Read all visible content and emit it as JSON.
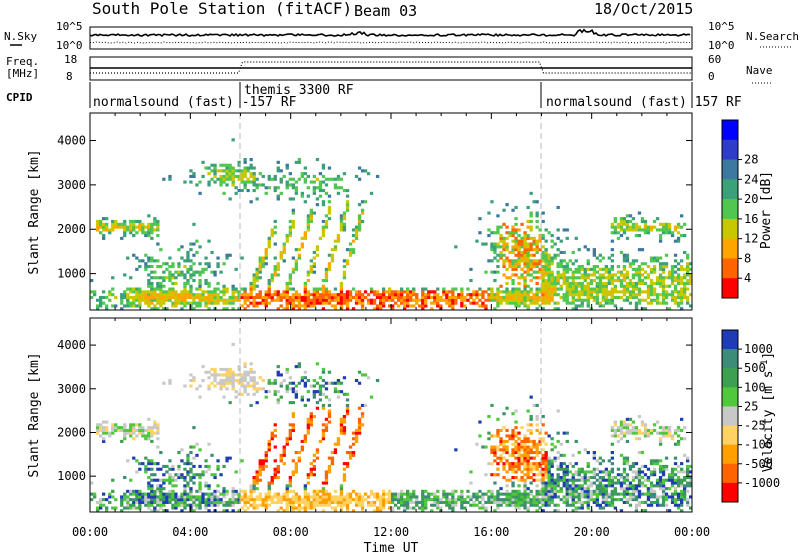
{
  "header": {
    "station": "South Pole Station (fitACF)",
    "beam": "Beam 03",
    "date": "18/Oct/2015"
  },
  "panels": {
    "sky": {
      "left_label": "N.Sky",
      "right_label": "N.Search",
      "tick_top": "10^5",
      "tick_bottom": "10^0"
    },
    "freq": {
      "left_label_1": "Freq.",
      "left_label_2": "[MHz]",
      "right_label": "Nave",
      "left_ticks": [
        "18",
        "8"
      ],
      "right_ticks": [
        "60",
        "0"
      ]
    },
    "cpid": {
      "label": "CPID",
      "segments": [
        "normalsound (fast) -157 RF",
        "themis 3300 RF",
        "normalsound (fast) 157 RF"
      ]
    }
  },
  "chart_data": [
    {
      "type": "heatmap",
      "name": "power",
      "ylabel": "Slant Range [km]",
      "ylim": [
        180,
        4620
      ],
      "yticks": [
        1000,
        2000,
        3000,
        4000
      ],
      "xlim": [
        0,
        24
      ],
      "colorbar": {
        "label": "Power [dB]",
        "ticks": [
          "4",
          "8",
          "12",
          "16",
          "20",
          "24",
          "28"
        ],
        "colors": [
          "#0000ff",
          "#2e3cc8",
          "#3c78a0",
          "#3ca078",
          "#50c850",
          "#c8c800",
          "#ffa500",
          "#ff6400",
          "#ff0000"
        ]
      }
    },
    {
      "type": "heatmap",
      "name": "velocity",
      "ylabel": "Slant Range [km]",
      "ylim": [
        180,
        4620
      ],
      "yticks": [
        1000,
        2000,
        3000,
        4000
      ],
      "xlim": [
        0,
        24
      ],
      "colorbar": {
        "label": "Velocity [m s",
        "label_sup": "-1",
        "label_end": "]",
        "ticks": [
          "1000",
          "500",
          "100",
          "25",
          "-25",
          "-100",
          "-500",
          "-1000"
        ],
        "colors": [
          "#1e3cb4",
          "#3c8c78",
          "#3ca050",
          "#50c83c",
          "#c8c8c8",
          "#ffd264",
          "#ffa000",
          "#ff6400",
          "#ff0000"
        ]
      }
    }
  ],
  "xaxis": {
    "label": "Time UT",
    "ticks": [
      "00:00",
      "04:00",
      "08:00",
      "12:00",
      "16:00",
      "20:00",
      "00:00"
    ]
  }
}
